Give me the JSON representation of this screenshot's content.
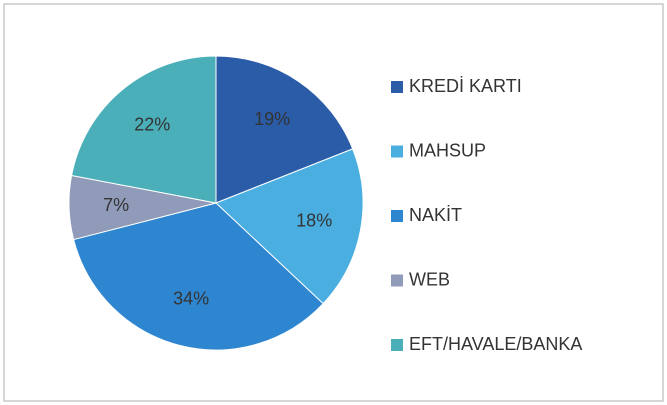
{
  "chart_data": {
    "type": "pie",
    "categories": [
      "KREDİ KARTI",
      "MAHSUP",
      "NAKİT",
      "WEB",
      "EFT/HAVALE/BANKA"
    ],
    "values": [
      19,
      18,
      34,
      7,
      22
    ],
    "value_labels": [
      "19%",
      "18%",
      "34%",
      "7%",
      "22%"
    ],
    "colors": [
      "#2b5ca8",
      "#4aaee0",
      "#2f86d0",
      "#8f9bb8",
      "#4bafb9"
    ],
    "legend": "right"
  }
}
